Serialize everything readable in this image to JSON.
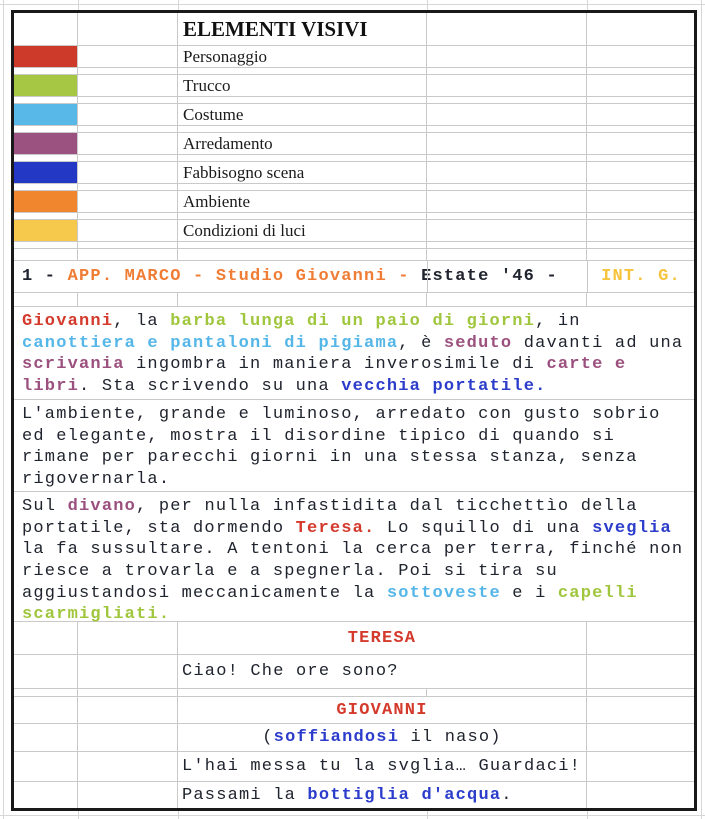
{
  "palette": {
    "k": {
      "hex": "#20242e",
      "bold": false
    },
    "kb": {
      "hex": "#20242e",
      "bold": true
    },
    "red": {
      "hex": "#d43a2c",
      "bold": true
    },
    "green": {
      "hex": "#9fc63c",
      "bold": true
    },
    "cyan": {
      "hex": "#55b6e8",
      "bold": true
    },
    "purple": {
      "hex": "#9b507e",
      "bold": true
    },
    "blue": {
      "hex": "#2c3dcb",
      "bold": true
    },
    "orange": {
      "hex": "#ef7d35",
      "bold": true
    },
    "yellow": {
      "hex": "#f5c33c",
      "bold": true
    }
  },
  "legend": {
    "title": "ELEMENTI VISIVI",
    "items": [
      {
        "swatch": "#cd3a29",
        "label": "Personaggio"
      },
      {
        "swatch": "#a5c744",
        "label": "Trucco"
      },
      {
        "swatch": "#58b8e8",
        "label": "Costume"
      },
      {
        "swatch": "#9b5280",
        "label": "Arredamento"
      },
      {
        "swatch": "#2438c6",
        "label": "Fabbisogno scena"
      },
      {
        "swatch": "#f0862e",
        "label": "Ambiente"
      },
      {
        "swatch": "#f6c94d",
        "label": "Condizioni di luci"
      }
    ]
  },
  "scene_heading": {
    "left": {
      "segments": [
        [
          "kb",
          "1 - "
        ],
        [
          "orange",
          "APP. MARCO - Studio Giovanni - "
        ],
        [
          "kb",
          "Estate '46 - "
        ]
      ]
    },
    "right": {
      "segments": [
        [
          "yellow",
          "INT. G."
        ]
      ]
    }
  },
  "action_paragraphs": [
    {
      "lines": [
        [
          [
            "red",
            "Giovanni"
          ],
          [
            "k",
            ", la "
          ],
          [
            "green",
            "barba lunga di un paio di giorni"
          ],
          [
            "k",
            ", in"
          ]
        ],
        [
          [
            "cyan",
            "canottiera e pantaloni di pigiama"
          ],
          [
            "k",
            ", è "
          ],
          [
            "purple",
            "seduto"
          ],
          [
            "k",
            " davanti ad una"
          ]
        ],
        [
          [
            "purple",
            "scrivania"
          ],
          [
            "k",
            " ingombra in maniera inverosimile di "
          ],
          [
            "purple",
            "carte e"
          ]
        ],
        [
          [
            "purple",
            "libri"
          ],
          [
            "k",
            ". Sta scrivendo su una "
          ],
          [
            "blue",
            "vecchia portatile."
          ]
        ]
      ]
    },
    {
      "lines": [
        [
          [
            "k",
            "L'ambiente, grande e luminoso, arredato con gusto sobrio"
          ]
        ],
        [
          [
            "k",
            "ed elegante, mostra il disordine tipico di quando si"
          ]
        ],
        [
          [
            "k",
            "rimane per parecchi giorni in una stessa stanza, senza"
          ]
        ],
        [
          [
            "k",
            "rigovernarla."
          ]
        ]
      ]
    },
    {
      "lines": [
        [
          [
            "k",
            "Sul "
          ],
          [
            "purple",
            "divano"
          ],
          [
            "k",
            ", per nulla infastidita dal ticchettìo della"
          ]
        ],
        [
          [
            "k",
            "portatile, sta dormendo "
          ],
          [
            "red",
            "Teresa."
          ],
          [
            "k",
            " Lo squillo di una "
          ],
          [
            "blue",
            "sveglia"
          ]
        ],
        [
          [
            "k",
            "la fa sussultare. A tentoni la cerca per terra, finché non"
          ]
        ],
        [
          [
            "k",
            "riesce a trovarla e a spegnerla. Poi si tira su"
          ]
        ],
        [
          [
            "k",
            "aggiustandosi meccanicamente la "
          ],
          [
            "cyan",
            "sottoveste"
          ],
          [
            "k",
            " e i "
          ],
          [
            "green",
            "capelli"
          ]
        ],
        [
          [
            "green",
            "scarmigliati."
          ]
        ]
      ]
    }
  ],
  "dialogue": {
    "teresa_name": {
      "segments": [
        [
          "red",
          "TERESA"
        ]
      ]
    },
    "teresa_line": {
      "segments": [
        [
          "k",
          "Ciao! Che ore sono?"
        ]
      ]
    },
    "giovanni_name": {
      "segments": [
        [
          "red",
          "GIOVANNI"
        ]
      ]
    },
    "giovanni_parenthetical": {
      "segments": [
        [
          "k",
          "("
        ],
        [
          "blue",
          "soffiandosi"
        ],
        [
          "k",
          " il naso)"
        ]
      ]
    },
    "giovanni_line1": {
      "segments": [
        [
          "k",
          "L'hai messa tu la svglia… Guardaci!"
        ]
      ]
    },
    "giovanni_line2": {
      "segments": [
        [
          "k",
          "Passami la "
        ],
        [
          "blue",
          "bottiglia d'acqua"
        ],
        [
          "k",
          "."
        ]
      ]
    }
  }
}
